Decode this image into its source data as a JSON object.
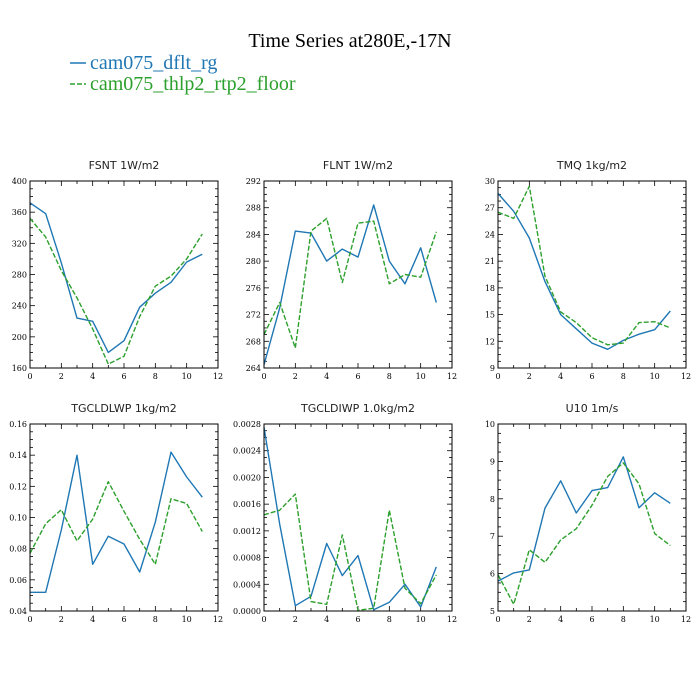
{
  "title": "Time Series at280E,-17N",
  "legend": [
    {
      "label": "cam075_dflt_rg",
      "color": "#1f77b4",
      "dash": "solid"
    },
    {
      "label": "cam075_thlp2_rtp2_floor",
      "color": "#2ca02c",
      "dash": "dashed"
    }
  ],
  "chart_data": [
    {
      "type": "line",
      "title": "FSNT   1W/m2",
      "xlim": [
        0,
        12
      ],
      "ylim": [
        160,
        400
      ],
      "xticks": [
        "0",
        "2",
        "4",
        "6",
        "8",
        "10",
        "12"
      ],
      "yticks": [
        "160",
        "200",
        "240",
        "280",
        "320",
        "360",
        "400"
      ],
      "x": [
        0,
        1,
        2,
        3,
        4,
        5,
        6,
        7,
        8,
        9,
        10,
        11
      ],
      "series": [
        {
          "name": "cam075_dflt_rg",
          "values": [
            372,
            358,
            295,
            224,
            220,
            180,
            195,
            238,
            256,
            270,
            296,
            306
          ]
        },
        {
          "name": "cam075_thlp2_rtp2_floor",
          "values": [
            352,
            328,
            285,
            250,
            210,
            165,
            175,
            226,
            265,
            278,
            300,
            332
          ]
        }
      ]
    },
    {
      "type": "line",
      "title": "FLNT   1W/m2",
      "xlim": [
        0,
        12
      ],
      "ylim": [
        264,
        292
      ],
      "xticks": [
        "0",
        "2",
        "4",
        "6",
        "8",
        "10",
        "12"
      ],
      "yticks": [
        "264",
        "268",
        "272",
        "276",
        "280",
        "284",
        "288",
        "292"
      ],
      "x": [
        0,
        1,
        2,
        3,
        4,
        5,
        6,
        7,
        8,
        9,
        10,
        11
      ],
      "series": [
        {
          "name": "cam075_dflt_rg",
          "values": [
            264.5,
            273.0,
            284.5,
            284.2,
            280.0,
            281.8,
            280.6,
            288.4,
            280.0,
            276.6,
            282.0,
            273.8
          ]
        },
        {
          "name": "cam075_thlp2_rtp2_floor",
          "values": [
            269.0,
            273.8,
            267.0,
            284.5,
            286.4,
            276.8,
            285.7,
            286.0,
            276.6,
            278.0,
            277.6,
            284.4
          ]
        }
      ]
    },
    {
      "type": "line",
      "title": "TMQ   1kg/m2",
      "xlim": [
        0,
        12
      ],
      "ylim": [
        9,
        30
      ],
      "xticks": [
        "0",
        "2",
        "4",
        "6",
        "8",
        "10",
        "12"
      ],
      "yticks": [
        "9",
        "12",
        "15",
        "18",
        "21",
        "24",
        "27",
        "30"
      ],
      "x": [
        0,
        1,
        2,
        3,
        4,
        5,
        6,
        7,
        8,
        9,
        10,
        11
      ],
      "series": [
        {
          "name": "cam075_dflt_rg",
          "values": [
            28.6,
            26.6,
            23.6,
            18.7,
            15.0,
            13.4,
            11.8,
            11.1,
            12.1,
            12.8,
            13.3,
            15.4
          ]
        },
        {
          "name": "cam075_thlp2_rtp2_floor",
          "values": [
            26.5,
            25.8,
            29.4,
            19.3,
            15.3,
            14.1,
            12.4,
            11.6,
            11.8,
            14.1,
            14.2,
            13.5
          ]
        }
      ]
    },
    {
      "type": "line",
      "title": "TGCLDLWP   1kg/m2",
      "xlim": [
        0,
        12
      ],
      "ylim": [
        0.04,
        0.16
      ],
      "xticks": [
        "0",
        "2",
        "4",
        "6",
        "8",
        "10",
        "12"
      ],
      "yticks": [
        "0.04",
        "0.06",
        "0.08",
        "0.10",
        "0.12",
        "0.14",
        "0.16"
      ],
      "x": [
        0,
        1,
        2,
        3,
        4,
        5,
        6,
        7,
        8,
        9,
        10,
        11
      ],
      "series": [
        {
          "name": "cam075_dflt_rg",
          "values": [
            0.052,
            0.052,
            0.092,
            0.14,
            0.07,
            0.088,
            0.083,
            0.065,
            0.097,
            0.142,
            0.126,
            0.113
          ]
        },
        {
          "name": "cam075_thlp2_rtp2_floor",
          "values": [
            0.077,
            0.096,
            0.105,
            0.085,
            0.099,
            0.123,
            0.104,
            0.086,
            0.07,
            0.112,
            0.109,
            0.091
          ]
        }
      ]
    },
    {
      "type": "line",
      "title": "TGCLDIWP   1.0kg/m2",
      "xlim": [
        0,
        12
      ],
      "ylim": [
        0,
        0.0028
      ],
      "xticks": [
        "0",
        "2",
        "4",
        "6",
        "8",
        "10",
        "12"
      ],
      "yticks": [
        "0.0000",
        "0.0004",
        "0.0008",
        "0.0012",
        "0.0016",
        "0.0020",
        "0.0024",
        "0.0028"
      ],
      "x": [
        0,
        1,
        2,
        3,
        4,
        5,
        6,
        7,
        8,
        9,
        10,
        11
      ],
      "series": [
        {
          "name": "cam075_dflt_rg",
          "values": [
            0.00275,
            0.0013,
            8e-05,
            0.00022,
            0.00101,
            0.00053,
            0.00083,
            2e-05,
            0.00013,
            0.0004,
            6e-05,
            0.00066
          ]
        },
        {
          "name": "cam075_thlp2_rtp2_floor",
          "values": [
            0.00144,
            0.00151,
            0.00175,
            0.00014,
            0.0001,
            0.00114,
            1e-05,
            4e-05,
            0.00151,
            0.00034,
            0.00011,
            0.00054
          ]
        }
      ]
    },
    {
      "type": "line",
      "title": "U10   1m/s",
      "xlim": [
        0,
        12
      ],
      "ylim": [
        5,
        10
      ],
      "xticks": [
        "0",
        "2",
        "4",
        "6",
        "8",
        "10",
        "12"
      ],
      "yticks": [
        "5",
        "6",
        "7",
        "8",
        "9",
        "10"
      ],
      "x": [
        0,
        1,
        2,
        3,
        4,
        5,
        6,
        7,
        8,
        9,
        10,
        11
      ],
      "series": [
        {
          "name": "cam075_dflt_rg",
          "values": [
            5.8,
            6.02,
            6.1,
            7.75,
            8.48,
            7.62,
            8.22,
            8.3,
            9.12,
            7.76,
            8.16,
            7.88
          ]
        },
        {
          "name": "cam075_thlp2_rtp2_floor",
          "values": [
            5.97,
            5.18,
            6.64,
            6.3,
            6.9,
            7.2,
            7.83,
            8.6,
            8.96,
            8.4,
            7.07,
            6.75
          ]
        }
      ]
    }
  ]
}
